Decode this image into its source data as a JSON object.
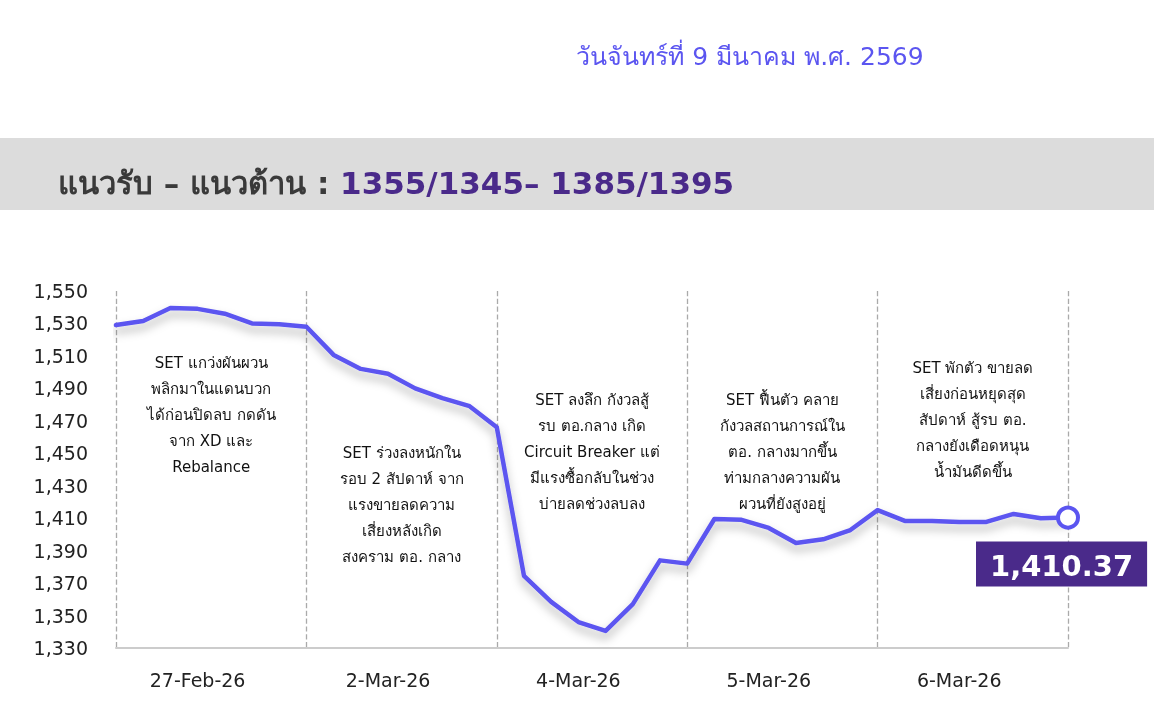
{
  "chart_data": {
    "type": "line",
    "title": "แนวรับ – แนวต้าน : 1355/1345– 1385/1395",
    "subtitle": "วันจันทร์ที่ 9 มีนาคม พ.ศ. 2569",
    "categories": [
      null,
      null,
      null,
      "27-Feb-26",
      null,
      null,
      null,
      null,
      null,
      null,
      "2-Mar-26",
      null,
      null,
      null,
      null,
      null,
      null,
      "4-Mar-26",
      null,
      null,
      null,
      null,
      null,
      null,
      "5-Mar-26",
      null,
      null,
      null,
      null,
      null,
      null,
      "6-Mar-26",
      null,
      null,
      null,
      null
    ],
    "series": [
      {
        "color": "#5b55f0",
        "values": [
          1529,
          1531.5,
          1539.5,
          1539,
          1536,
          1530,
          1529.5,
          1528,
          1510.6,
          1502,
          1499,
          1490,
          1484,
          1479,
          1466,
          1374.4,
          1358.4,
          1346,
          1340.5,
          1357,
          1384,
          1382,
          1409.5,
          1409,
          1404,
          1394.7,
          1397,
          1402.7,
          1415,
          1408.3,
          1408.3,
          1407.7,
          1407.7,
          1412.6,
          1410,
          1410.37
        ],
        "value_labels": [
          null,
          null,
          null,
          null,
          null,
          null,
          null,
          null,
          null,
          null,
          null,
          null,
          null,
          null,
          null,
          null,
          null,
          null,
          null,
          null,
          null,
          null,
          null,
          null,
          null,
          null,
          null,
          null,
          null,
          null,
          null,
          null,
          null,
          null,
          null,
          "1,410.37"
        ]
      }
    ],
    "ylim": [
      1330,
      1550
    ],
    "yticks": [
      {
        "value": 1330,
        "label": "1,330"
      },
      {
        "value": 1350,
        "label": "1,350"
      },
      {
        "value": 1370,
        "label": "1,370"
      },
      {
        "value": 1390,
        "label": "1,390"
      },
      {
        "value": 1410,
        "label": "1,410"
      },
      {
        "value": 1430,
        "label": "1,430"
      },
      {
        "value": 1450,
        "label": "1,450"
      },
      {
        "value": 1470,
        "label": "1,470"
      },
      {
        "value": 1490,
        "label": "1,490"
      },
      {
        "value": 1510,
        "label": "1,510"
      },
      {
        "value": 1530,
        "label": "1,530"
      },
      {
        "value": 1550,
        "label": "1,550"
      }
    ],
    "annotations": [
      "SET แกว่งผันผวน\nพลิกมาในแดนบวก\nได้ก่อนปิดลบ กดดัน\nจาก XD และ\nRebalance",
      "SET ร่วงลงหนักใน\nรอบ 2 สัปดาห์ จาก\nแรงขายลดความ\nเสี่ยงหลังเกิด\nสงคราม ตอ. กลาง",
      "SET ลงลึก กังวลสู้\nรบ ตอ.กลาง เกิด\nCircuit Breaker แต่\nมีแรงซื้อกลับในช่วง\nบ่ายลดช่วงลบลง",
      "SET ฟื้นตัว คลาย\nกังวลสถานการณ์ใน\nตอ. กลางมากขึ้น\nท่ามกลางความผัน\nผวนที่ยังสูงอยู่",
      "SET พักตัว ขายลด\nเสี่ยงก่อนหยุดสุด\nสัปดาห์ สู้รบ ตอ.\nกลางยังเดือดหนุน\nน้ำมันดีดขึ้น"
    ],
    "grid": "x",
    "marker": "none",
    "line_style": "solid"
  }
}
